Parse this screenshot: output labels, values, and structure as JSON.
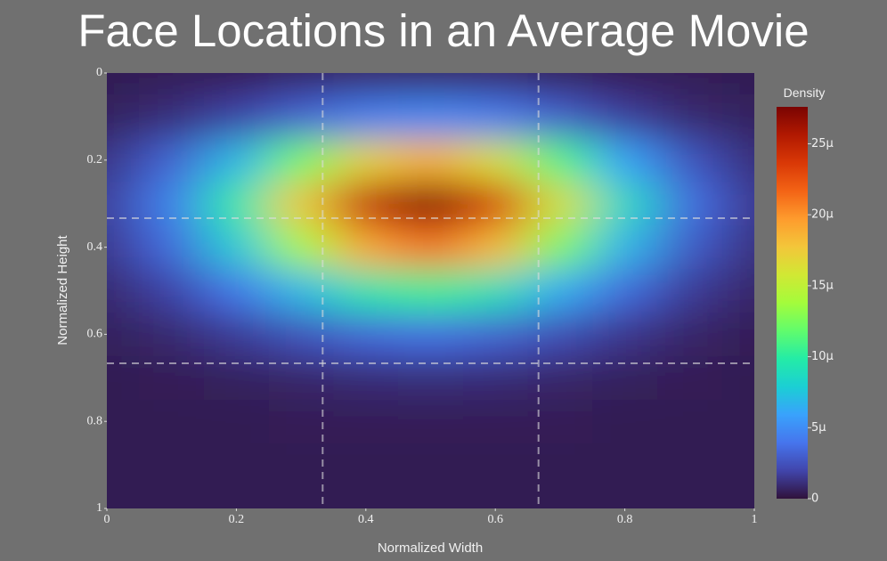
{
  "chart_data": {
    "type": "heatmap",
    "title": "Face Locations in an Average Movie",
    "x_label": "Normalized Width",
    "y_label": "Normalized Height",
    "colorbar_title": "Density",
    "x": [
      0,
      0.1,
      0.2,
      0.3,
      0.4,
      0.5,
      0.6,
      0.7,
      0.8,
      0.9,
      1
    ],
    "y": [
      0,
      0.1,
      0.2,
      0.3,
      0.4,
      0.5,
      0.6,
      0.7,
      0.8,
      0.9,
      1
    ],
    "z": [
      [
        4e-07,
        5e-07,
        5e-07,
        7e-07,
        8e-07,
        8e-07,
        8e-07,
        6e-07,
        5e-07,
        5e-07,
        4e-07
      ],
      [
        6e-07,
        1.1e-06,
        1.9e-06,
        3.2e-06,
        4.4e-06,
        4.8e-06,
        4.2e-06,
        3e-06,
        1.7e-06,
        9e-07,
        6e-07
      ],
      [
        1.3e-06,
        3.2e-06,
        6.8e-06,
        1.22e-05,
        1.7e-05,
        1.88e-05,
        1.62e-05,
        1.11e-05,
        5.9e-06,
        2.6e-06,
        1.1e-06
      ],
      [
        1.75e-06,
        4.46e-06,
        9.9e-06,
        1.77e-05,
        2.48e-05,
        2.75e-05,
        2.37e-05,
        1.62e-05,
        8.6e-06,
        3.7e-06,
        1.5e-06
      ],
      [
        1.45e-06,
        3.54e-06,
        7.7e-06,
        1.38e-05,
        1.92e-05,
        2.13e-05,
        1.84e-05,
        1.25e-05,
        6.7e-06,
        2.9e-06,
        1.2e-06
      ],
      [
        9e-07,
        1.9e-06,
        4e-06,
        6.9e-06,
        9.6e-06,
        1.06e-05,
        9.2e-06,
        6.3e-06,
        3.5e-06,
        1.6e-06,
        8e-07
      ],
      [
        6e-07,
        9e-07,
        1.6e-06,
        2.5e-06,
        3.4e-06,
        3.7e-06,
        3.2e-06,
        2.3e-06,
        1.4e-06,
        8e-07,
        5e-07
      ],
      [
        4e-07,
        5e-07,
        6e-07,
        8e-07,
        1e-06,
        1.1e-06,
        1e-06,
        8e-07,
        6e-07,
        5e-07,
        4e-07
      ],
      [
        4e-07,
        4e-07,
        4e-07,
        5e-07,
        5e-07,
        5e-07,
        5e-07,
        5e-07,
        4e-07,
        4e-07,
        4e-07
      ],
      [
        4e-07,
        4e-07,
        4e-07,
        4e-07,
        4e-07,
        4e-07,
        4e-07,
        4e-07,
        4e-07,
        4e-07,
        4e-07
      ],
      [
        4e-07,
        4e-07,
        4e-07,
        4e-07,
        4e-07,
        4e-07,
        4e-07,
        4e-07,
        4e-07,
        4e-07,
        4e-07
      ]
    ],
    "xlim": [
      0,
      1
    ],
    "ylim": [
      0,
      1
    ],
    "y_inverted": true,
    "xticks": [
      0,
      0.2,
      0.4,
      0.6,
      0.8,
      1
    ],
    "yticks": [
      0,
      0.2,
      0.4,
      0.6,
      0.8,
      1
    ],
    "zlim": [
      0,
      2.76e-05
    ],
    "zticks": [
      0,
      {
        "value": 5e-06,
        "label": "5μ"
      },
      {
        "value": 1e-05,
        "label": "10μ"
      },
      {
        "value": 1.5e-05,
        "label": "15μ"
      },
      {
        "value": 2e-05,
        "label": "20μ"
      },
      {
        "value": 2.5e-05,
        "label": "25μ"
      }
    ],
    "colorscale": [
      "#30123b",
      "#4145ab",
      "#4675ed",
      "#39a2fc",
      "#1bcfd4",
      "#24eca6",
      "#61fc6c",
      "#a4fc3b",
      "#d1e834",
      "#f3c63a",
      "#fe9b2d",
      "#f36315",
      "#d93806",
      "#b11901",
      "#7a0402"
    ],
    "vlines": [
      0.3333,
      0.6667
    ],
    "hlines": [
      0.3333,
      0.6667
    ]
  }
}
